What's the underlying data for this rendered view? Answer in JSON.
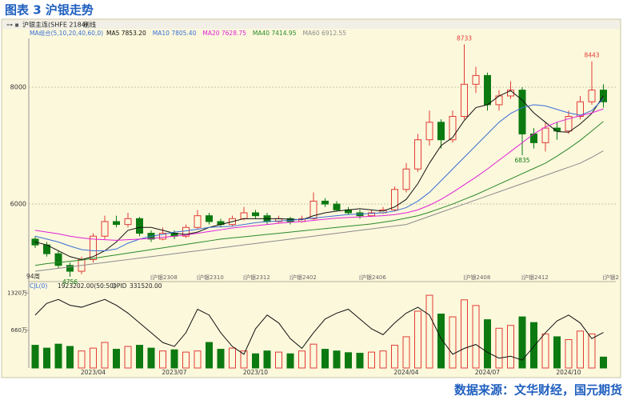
{
  "title": "图表 3 沪银走势",
  "source": "数据来源：文华财经，国元期货",
  "chart_data": {
    "type": "candlestick",
    "toolbar": {
      "symbol": "沪银主连(SHFE 2184)",
      "mode": "刷线"
    },
    "ma_legend": "MA组合(5,10,20,40,60,0)",
    "span_label": "94周",
    "up_color": "#e23b36",
    "down_color": "#0c7a10",
    "ylim": [
      4700,
      8835
    ],
    "yticks": [
      6000,
      8000
    ],
    "grid": true,
    "categories": [
      null,
      null,
      null,
      null,
      null,
      "2023/04",
      null,
      null,
      null,
      null,
      null,
      null,
      "2023/07",
      null,
      null,
      null,
      null,
      null,
      null,
      "2023/10",
      null,
      null,
      null,
      null,
      null,
      null,
      null,
      null,
      null,
      null,
      null,
      null,
      "2024/04",
      null,
      null,
      null,
      null,
      null,
      null,
      "2024/07",
      null,
      null,
      null,
      null,
      null,
      null,
      "2024/10",
      null,
      null,
      null
    ],
    "contract_labels": [
      null,
      null,
      null,
      null,
      null,
      null,
      null,
      null,
      null,
      null,
      "沪银2308",
      null,
      null,
      null,
      "沪银2310",
      null,
      null,
      null,
      "沪银2312",
      null,
      null,
      null,
      "沪银2402",
      null,
      null,
      null,
      null,
      null,
      "沪银2406",
      null,
      null,
      null,
      null,
      null,
      null,
      null,
      null,
      "沪银2408",
      null,
      null,
      null,
      null,
      "沪银2412",
      null,
      null,
      null,
      null,
      null,
      null,
      "沪银2"
    ],
    "ohlc": [
      [
        5400,
        5450,
        5250,
        5300
      ],
      [
        5300,
        5350,
        5100,
        5150
      ],
      [
        5150,
        5200,
        4900,
        4950
      ],
      [
        4950,
        5000,
        4756,
        4850
      ],
      [
        4850,
        5100,
        4800,
        5050
      ],
      [
        5050,
        5500,
        5000,
        5450
      ],
      [
        5450,
        5800,
        5400,
        5700
      ],
      [
        5700,
        5800,
        5600,
        5650
      ],
      [
        5650,
        5850,
        5600,
        5750
      ],
      [
        5750,
        5780,
        5450,
        5500
      ],
      [
        5500,
        5550,
        5350,
        5400
      ],
      [
        5400,
        5600,
        5380,
        5500
      ],
      [
        5500,
        5550,
        5400,
        5450
      ],
      [
        5450,
        5650,
        5420,
        5600
      ],
      [
        5600,
        5900,
        5580,
        5800
      ],
      [
        5800,
        5850,
        5650,
        5700
      ],
      [
        5700,
        5750,
        5600,
        5650
      ],
      [
        5650,
        5800,
        5620,
        5750
      ],
      [
        5750,
        5950,
        5720,
        5850
      ],
      [
        5850,
        5900,
        5750,
        5800
      ],
      [
        5800,
        5850,
        5650,
        5700
      ],
      [
        5700,
        5800,
        5680,
        5750
      ],
      [
        5750,
        5780,
        5650,
        5700
      ],
      [
        5700,
        5800,
        5680,
        5750
      ],
      [
        5750,
        6200,
        5730,
        6050
      ],
      [
        6050,
        6100,
        5950,
        6000
      ],
      [
        6000,
        6050,
        5870,
        5900
      ],
      [
        5900,
        5950,
        5820,
        5850
      ],
      [
        5850,
        5900,
        5750,
        5800
      ],
      [
        5800,
        5900,
        5780,
        5850
      ],
      [
        5850,
        5950,
        5830,
        5900
      ],
      [
        5900,
        6300,
        5880,
        6250
      ],
      [
        6250,
        6700,
        6200,
        6600
      ],
      [
        6600,
        7200,
        6550,
        7100
      ],
      [
        7100,
        7600,
        7000,
        7400
      ],
      [
        7400,
        7450,
        6950,
        7100
      ],
      [
        7100,
        7600,
        7050,
        7500
      ],
      [
        7500,
        8733,
        7450,
        8050
      ],
      [
        8050,
        8350,
        7900,
        8200
      ],
      [
        8200,
        8250,
        7600,
        7700
      ],
      [
        7700,
        7950,
        7600,
        7850
      ],
      [
        7850,
        8100,
        7800,
        7950
      ],
      [
        7950,
        8000,
        6835,
        7200
      ],
      [
        7200,
        7300,
        6950,
        7050
      ],
      [
        7050,
        7400,
        6900,
        7300
      ],
      [
        7300,
        7400,
        7100,
        7250
      ],
      [
        7250,
        7600,
        7200,
        7500
      ],
      [
        7500,
        7850,
        7450,
        7750
      ],
      [
        7750,
        8443,
        7700,
        7950
      ],
      [
        7950,
        8050,
        7650,
        7750
      ]
    ],
    "series": [
      {
        "name": "MA5",
        "color": "#111111",
        "last_label": "7853.20",
        "values": [
          5350,
          5300,
          5200,
          5100,
          5050,
          5100,
          5200,
          5350,
          5550,
          5600,
          5600,
          5550,
          5500,
          5480,
          5520,
          5600,
          5650,
          5700,
          5750,
          5750,
          5750,
          5750,
          5740,
          5730,
          5800,
          5850,
          5880,
          5900,
          5920,
          5900,
          5880,
          5950,
          6080,
          6350,
          6700,
          7000,
          7140,
          7430,
          7650,
          7700,
          7850,
          7940,
          7780,
          7560,
          7400,
          7240,
          7230,
          7370,
          7550,
          7853.2
        ]
      },
      {
        "name": "MA10",
        "color": "#3a6fd6",
        "last_label": "7805.40",
        "values": [
          5450,
          5400,
          5350,
          5280,
          5220,
          5200,
          5200,
          5230,
          5330,
          5400,
          5450,
          5480,
          5520,
          5540,
          5570,
          5600,
          5610,
          5620,
          5650,
          5680,
          5700,
          5710,
          5720,
          5740,
          5760,
          5780,
          5800,
          5820,
          5830,
          5840,
          5850,
          5880,
          5940,
          6050,
          6200,
          6400,
          6600,
          6800,
          7000,
          7200,
          7400,
          7550,
          7650,
          7700,
          7680,
          7620,
          7560,
          7520,
          7600,
          7805.4
        ]
      },
      {
        "name": "MA20",
        "color": "#e021d8",
        "last_label": "7628.75",
        "values": [
          5550,
          5520,
          5490,
          5450,
          5420,
          5400,
          5390,
          5380,
          5390,
          5400,
          5410,
          5430,
          5450,
          5470,
          5500,
          5530,
          5560,
          5590,
          5610,
          5630,
          5650,
          5670,
          5690,
          5700,
          5720,
          5740,
          5760,
          5770,
          5780,
          5790,
          5800,
          5820,
          5850,
          5900,
          5980,
          6080,
          6200,
          6330,
          6460,
          6600,
          6750,
          6900,
          7050,
          7200,
          7320,
          7400,
          7460,
          7510,
          7560,
          7628.75
        ]
      },
      {
        "name": "MA40",
        "color": "#2a8a2a",
        "last_label": "7414.95",
        "values": [
          4950,
          4980,
          5000,
          5020,
          5040,
          5070,
          5100,
          5130,
          5160,
          5190,
          5220,
          5250,
          5280,
          5310,
          5340,
          5370,
          5400,
          5420,
          5440,
          5460,
          5480,
          5500,
          5520,
          5540,
          5560,
          5580,
          5600,
          5620,
          5640,
          5660,
          5690,
          5720,
          5760,
          5800,
          5860,
          5930,
          6000,
          6080,
          6160,
          6250,
          6340,
          6430,
          6520,
          6610,
          6700,
          6820,
          6950,
          7090,
          7250,
          7414.95
        ]
      },
      {
        "name": "MA60",
        "color": "#8c8c8c",
        "last_label": "6912.55",
        "values": [
          4850,
          4875,
          4900,
          4925,
          4950,
          4975,
          5000,
          5025,
          5050,
          5075,
          5100,
          5125,
          5150,
          5175,
          5200,
          5225,
          5250,
          5275,
          5300,
          5325,
          5350,
          5375,
          5400,
          5425,
          5450,
          5475,
          5500,
          5525,
          5550,
          5575,
          5600,
          5625,
          5650,
          5720,
          5790,
          5860,
          5930,
          6000,
          6070,
          6140,
          6210,
          6280,
          6350,
          6420,
          6490,
          6560,
          6630,
          6700,
          6800,
          6912.55
        ]
      }
    ],
    "volume": {
      "name": "CJL(0)",
      "last_label": "1923202.00(50:50)",
      "ylim": [
        0,
        13800000
      ],
      "yticks": [
        {
          "value": 6600000,
          "label": "660万"
        },
        {
          "value": 13200000,
          "label": "1320万"
        }
      ],
      "values": [
        4000000,
        3500000,
        4200000,
        3800000,
        3000000,
        3500000,
        4500000,
        3300000,
        3800000,
        4000000,
        3500000,
        3000000,
        3200000,
        2800000,
        3000000,
        4500000,
        3300000,
        3500000,
        3000000,
        2500000,
        3000000,
        2800000,
        2500000,
        3000000,
        4200000,
        3300000,
        3000000,
        2700000,
        2600000,
        2800000,
        3000000,
        4000000,
        5500000,
        10000000,
        12800000,
        9500000,
        9000000,
        12000000,
        11000000,
        8500000,
        7000000,
        7500000,
        9000000,
        8000000,
        6000000,
        5500000,
        5000000,
        6500000,
        6000000,
        1923202
      ]
    },
    "open_interest": {
      "name": "OPID",
      "last_label": "331520.00",
      "color": "#111111",
      "ylim": [
        150000,
        550000
      ],
      "values": [
        420000,
        480000,
        500000,
        470000,
        460000,
        480000,
        500000,
        470000,
        430000,
        380000,
        330000,
        280000,
        260000,
        330000,
        450000,
        420000,
        330000,
        260000,
        220000,
        350000,
        420000,
        380000,
        300000,
        250000,
        330000,
        400000,
        430000,
        450000,
        400000,
        350000,
        320000,
        380000,
        430000,
        460000,
        420000,
        300000,
        220000,
        250000,
        270000,
        230000,
        200000,
        210000,
        190000,
        260000,
        330000,
        390000,
        420000,
        380000,
        300000,
        331520
      ]
    }
  }
}
